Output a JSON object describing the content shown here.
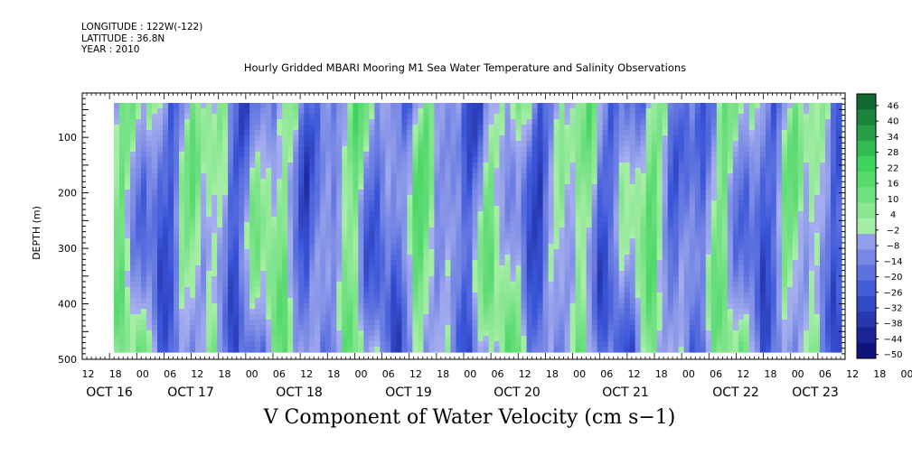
{
  "header": {
    "longitude": "LONGITUDE : 122W(-122)",
    "latitude": "LATITUDE : 36.8N",
    "year": "YEAR : 2010"
  },
  "chart_data": {
    "type": "heatmap",
    "title": "Hourly Gridded MBARI Mooring M1 Sea Water Temperature and Salinity Observations",
    "subtitle": "V Component of Water Velocity (cm s−1)",
    "ylabel": "DEPTH (m)",
    "yticks": [
      "100",
      "200",
      "300",
      "400",
      "500"
    ],
    "ylim": [
      500,
      20
    ],
    "x_hour_ticks": [
      "12",
      "18",
      "00",
      "06",
      "12",
      "18",
      "00",
      "06",
      "12",
      "18",
      "00",
      "06",
      "12",
      "18",
      "00",
      "06",
      "12",
      "18",
      "00",
      "06",
      "12",
      "18",
      "00",
      "06",
      "12",
      "18",
      "00",
      "06",
      "12",
      "18",
      "00",
      "06"
    ],
    "x_date_labels": [
      "OCT 16",
      "OCT 17",
      "OCT 18",
      "OCT 19",
      "OCT 20",
      "OCT 21",
      "OCT 22",
      "OCT 23"
    ],
    "colorbar_ticks": [
      "46",
      "40",
      "34",
      "28",
      "22",
      "16",
      "10",
      "4",
      "-2",
      "-8",
      "-14",
      "-20",
      "-26",
      "-32",
      "-38",
      "-44",
      "-50"
    ],
    "colorbar_range": [
      -50,
      52
    ],
    "colors": {
      "neg_low": "#0a0a70",
      "neg_mid": "#3a55d8",
      "neg_light": "#a8b0ee",
      "pos_light": "#a8eea8",
      "pos_mid": "#3ad25a",
      "pos_high": "#0a5a2a"
    }
  }
}
